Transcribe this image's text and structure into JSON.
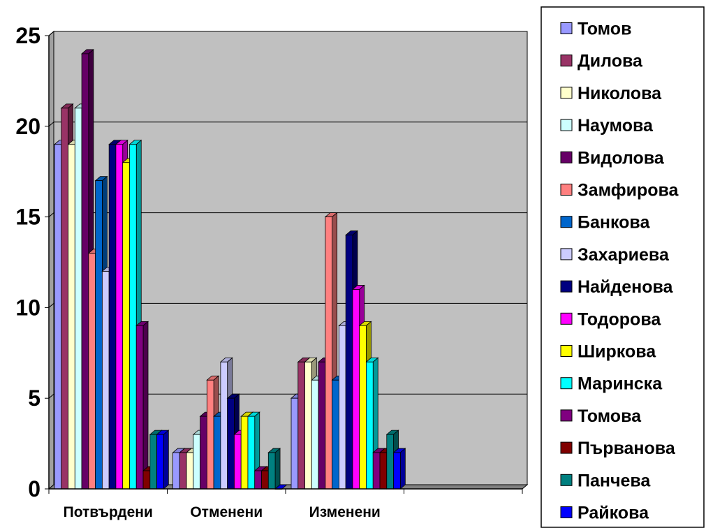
{
  "chart_data": {
    "type": "bar",
    "style": "3d-clustered-column",
    "categories": [
      "Потвърдени",
      "Отменени",
      "Изменени",
      ""
    ],
    "ylim": [
      0,
      25
    ],
    "yticks": [
      "0",
      "5",
      "10",
      "15",
      "20",
      "25"
    ],
    "grid": true,
    "plot_background": "#c0c0c0",
    "legend_position": "right",
    "series": [
      {
        "name": "Томов",
        "color": "#9999ff",
        "values": [
          19,
          2,
          5,
          null
        ]
      },
      {
        "name": "Дилова",
        "color": "#993366",
        "values": [
          21,
          2,
          7,
          null
        ]
      },
      {
        "name": "Николова",
        "color": "#ffffcc",
        "values": [
          19,
          2,
          7,
          null
        ]
      },
      {
        "name": "Наумова",
        "color": "#ccffff",
        "values": [
          21,
          3,
          6,
          null
        ]
      },
      {
        "name": "Видолова",
        "color": "#660066",
        "values": [
          24,
          4,
          7,
          null
        ]
      },
      {
        "name": "Замфирова",
        "color": "#ff8080",
        "values": [
          13,
          6,
          15,
          null
        ]
      },
      {
        "name": "Банкова",
        "color": "#0066cc",
        "values": [
          17,
          4,
          6,
          null
        ]
      },
      {
        "name": "Захариева",
        "color": "#ccccff",
        "values": [
          12,
          7,
          9,
          null
        ]
      },
      {
        "name": "Найденова",
        "color": "#000080",
        "values": [
          19,
          5,
          14,
          null
        ]
      },
      {
        "name": "Тодорова",
        "color": "#ff00ff",
        "values": [
          19,
          3,
          11,
          null
        ]
      },
      {
        "name": "Ширкова",
        "color": "#ffff00",
        "values": [
          18,
          4,
          9,
          null
        ]
      },
      {
        "name": "Маринска",
        "color": "#00ffff",
        "values": [
          19,
          4,
          7,
          null
        ]
      },
      {
        "name": "Томова",
        "color": "#800080",
        "values": [
          9,
          1,
          2,
          null
        ]
      },
      {
        "name": "Първанова",
        "color": "#800000",
        "values": [
          1,
          1,
          2,
          null
        ]
      },
      {
        "name": "Панчева",
        "color": "#008080",
        "values": [
          3,
          2,
          3,
          null
        ]
      },
      {
        "name": "Райкова",
        "color": "#0000ff",
        "values": [
          3,
          0,
          2,
          null
        ]
      }
    ]
  }
}
